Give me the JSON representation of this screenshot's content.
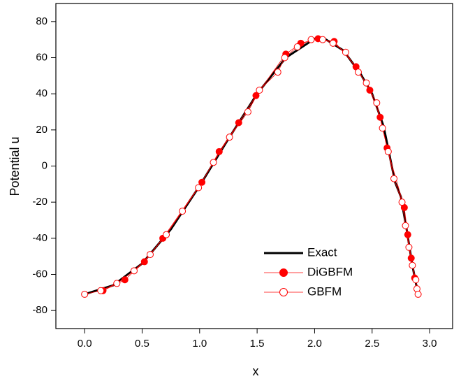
{
  "chart_data": {
    "type": "line",
    "x_label": "x",
    "y_label": "Potential u",
    "xlim": [
      -0.25,
      3.2
    ],
    "ylim": [
      -90,
      90
    ],
    "xticks": [
      {
        "value": 0,
        "label": "0.0"
      },
      0.5,
      {
        "value": 1,
        "label": "1.0"
      },
      1.5,
      {
        "value": 2,
        "label": "2.0"
      },
      2.5,
      {
        "value": 3,
        "label": "3.0"
      }
    ],
    "yticks": [
      -80,
      -60,
      -40,
      -20,
      0,
      20,
      40,
      60,
      80
    ],
    "legend_position": "lower right",
    "series": [
      {
        "name": "Exact",
        "color": "#000000",
        "marker": "none",
        "x": [
          0,
          0.25,
          0.5,
          0.75,
          1.0,
          1.25,
          1.5,
          1.75,
          2.0,
          2.1,
          2.25,
          2.4,
          2.5,
          2.6,
          2.7,
          2.75,
          2.8,
          2.85,
          2.9
        ],
        "values": [
          -71,
          -66,
          -54,
          -35,
          -11,
          15,
          40,
          60,
          70.5,
          70,
          64,
          51,
          40,
          22,
          -9,
          -17,
          -35,
          -55,
          -71
        ]
      },
      {
        "name": "DiGBFM",
        "color": "#ff0000",
        "marker": "filled",
        "x": [
          0.16,
          0.35,
          0.52,
          0.68,
          1.02,
          1.17,
          1.34,
          1.49,
          1.75,
          1.88,
          2.03,
          2.17,
          2.36,
          2.48,
          2.57,
          2.63,
          2.78,
          2.81,
          2.84,
          2.87
        ],
        "values": [
          -69,
          -63,
          -53,
          -40,
          -9,
          8,
          24,
          39,
          62,
          68,
          70.5,
          69,
          55,
          42,
          27,
          10,
          -23,
          -38,
          -51,
          -62
        ]
      },
      {
        "name": "GBFM",
        "color": "#ff0000",
        "marker": "open",
        "x": [
          0.0,
          0.14,
          0.28,
          0.43,
          0.57,
          0.71,
          0.85,
          0.99,
          1.12,
          1.26,
          1.42,
          1.52,
          1.68,
          1.74,
          1.85,
          1.97,
          2.07,
          2.16,
          2.27,
          2.38,
          2.45,
          2.54,
          2.59,
          2.64,
          2.69,
          2.76,
          2.79,
          2.82,
          2.85,
          2.88,
          2.89,
          2.9
        ],
        "values": [
          -71,
          -69,
          -65,
          -58,
          -49,
          -38,
          -25,
          -12,
          2,
          16,
          30,
          42,
          52,
          60,
          66,
          70,
          70,
          68,
          63,
          52,
          46,
          35,
          21,
          8,
          -7,
          -20,
          -33,
          -45,
          -55,
          -63,
          -68,
          -71
        ]
      }
    ]
  }
}
